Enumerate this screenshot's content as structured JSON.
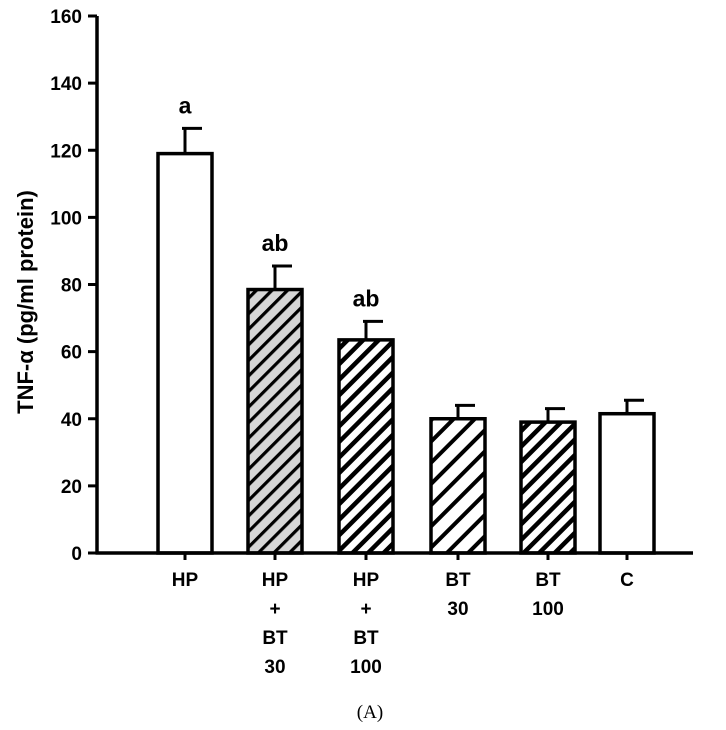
{
  "chart_data": {
    "type": "bar",
    "title": "",
    "xlabel": "",
    "ylabel": "TNF-α (pg/ml protein)",
    "ylim": [
      0,
      160
    ],
    "yticks": [
      0,
      20,
      40,
      60,
      80,
      100,
      120,
      140,
      160
    ],
    "grid": false,
    "legend": "none",
    "panel_label": "(A)",
    "categories": [
      {
        "lines": [
          "HP"
        ]
      },
      {
        "lines": [
          "HP",
          "+",
          "BT",
          "30"
        ]
      },
      {
        "lines": [
          "HP",
          "+",
          "BT",
          "100"
        ]
      },
      {
        "lines": [
          "BT",
          "30"
        ]
      },
      {
        "lines": [
          "BT",
          "100"
        ]
      },
      {
        "lines": [
          "C"
        ]
      }
    ],
    "values": [
      119,
      78.5,
      63.5,
      40,
      39,
      41.5
    ],
    "errors": [
      7.5,
      7,
      5.5,
      4,
      4,
      4
    ],
    "annotations": [
      "a",
      "ab",
      "ab",
      "",
      "",
      ""
    ],
    "fills": [
      "white",
      "dense-hatch-gray",
      "dense-hatch",
      "sparse-hatch",
      "dense-hatch",
      "white"
    ],
    "colors": {
      "stroke": "#000000",
      "gray_fill": "#d6d6d6",
      "white": "#ffffff"
    }
  }
}
